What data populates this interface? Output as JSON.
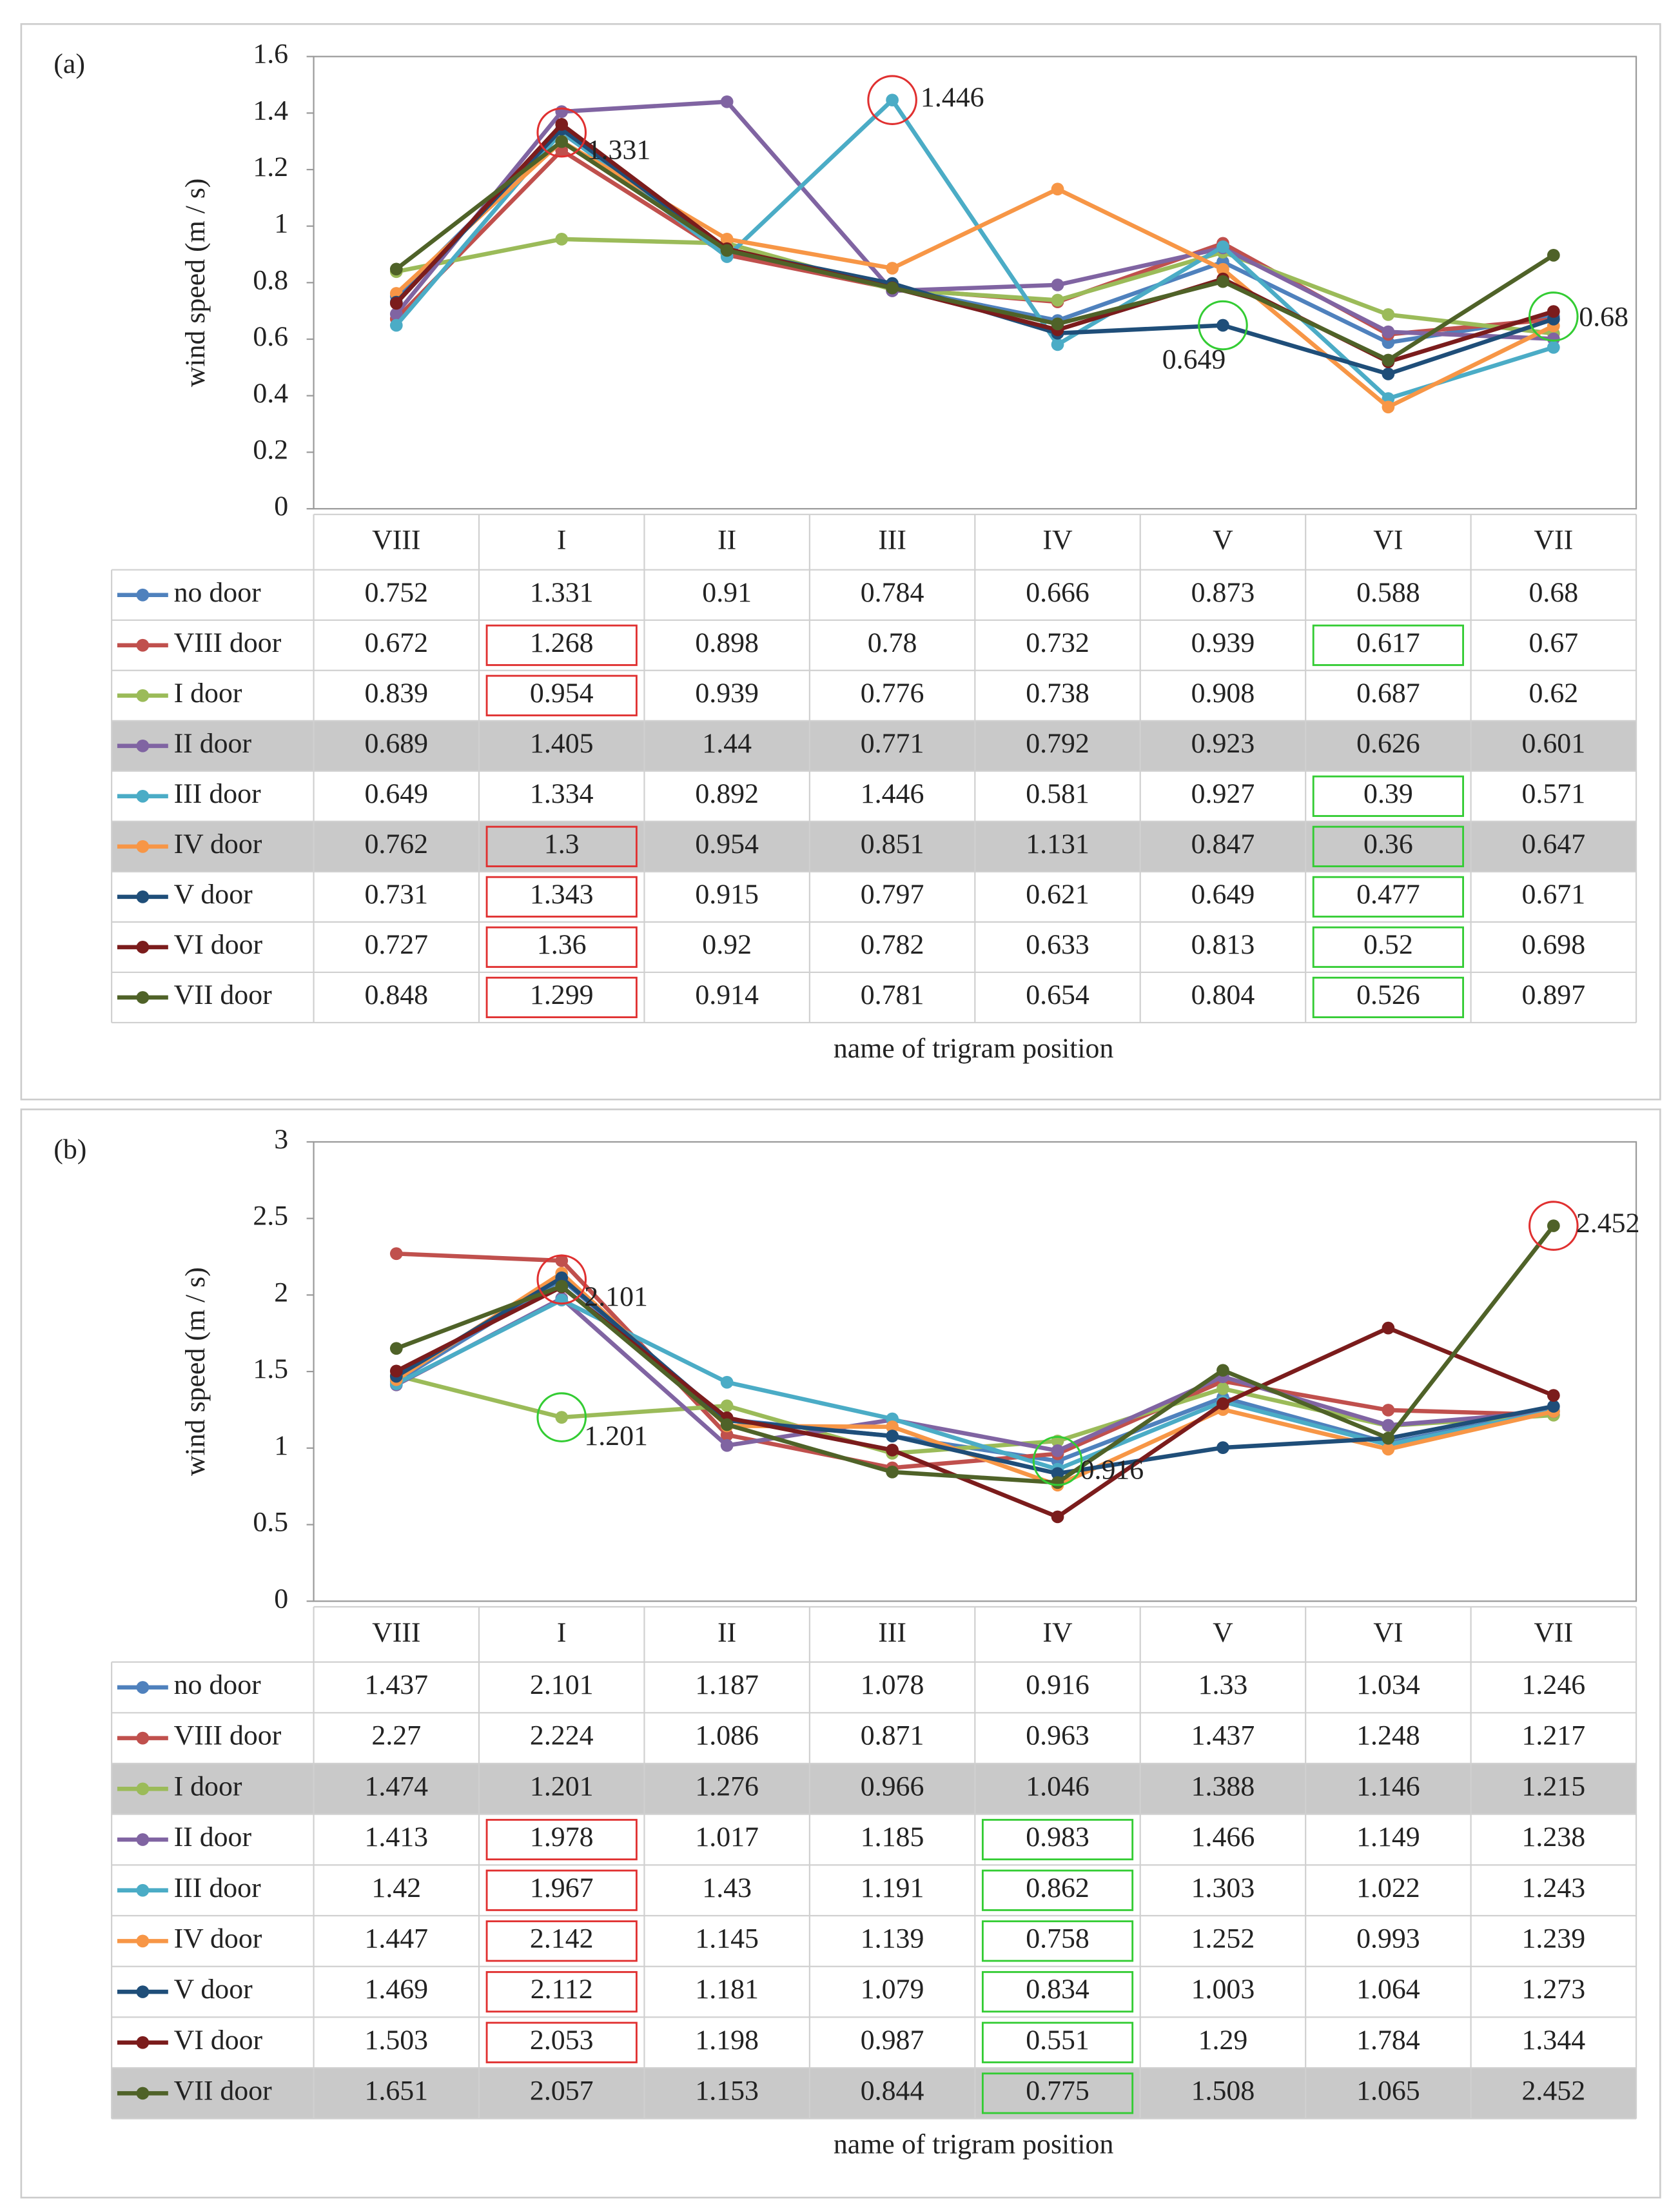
{
  "chart_data": [
    {
      "type": "line",
      "title": "(a)",
      "y_label": "wind speed (m / s)",
      "x_label": "name of trigram position",
      "categories": [
        "VIII",
        "I",
        "II",
        "III",
        "IV",
        "V",
        "VI",
        "VII"
      ],
      "ylim": [
        0,
        1.6
      ],
      "yticks": [
        0,
        0.2,
        0.4,
        0.6,
        0.8,
        1,
        1.2,
        1.4,
        1.6
      ],
      "series": [
        {
          "name": "no door",
          "color": "#4f81bd",
          "values": [
            0.752,
            1.331,
            0.91,
            0.784,
            0.666,
            0.873,
            0.588,
            0.68
          ]
        },
        {
          "name": "VIII door",
          "color": "#c0504d",
          "values": [
            0.672,
            1.268,
            0.898,
            0.78,
            0.732,
            0.939,
            0.617,
            0.67
          ]
        },
        {
          "name": "I door",
          "color": "#9bbb59",
          "values": [
            0.839,
            0.954,
            0.939,
            0.776,
            0.738,
            0.908,
            0.687,
            0.62
          ]
        },
        {
          "name": "II door",
          "color": "#8064a2",
          "values": [
            0.689,
            1.405,
            1.44,
            0.771,
            0.792,
            0.923,
            0.626,
            0.601
          ]
        },
        {
          "name": "III door",
          "color": "#4bacc6",
          "values": [
            0.649,
            1.334,
            0.892,
            1.446,
            0.581,
            0.927,
            0.39,
            0.571
          ]
        },
        {
          "name": "IV door",
          "color": "#f79646",
          "values": [
            0.762,
            1.3,
            0.954,
            0.851,
            1.131,
            0.847,
            0.36,
            0.647
          ]
        },
        {
          "name": "V door",
          "color": "#1f4e79",
          "values": [
            0.731,
            1.343,
            0.915,
            0.797,
            0.621,
            0.649,
            0.477,
            0.671
          ]
        },
        {
          "name": "VI door",
          "color": "#7b1c1c",
          "values": [
            0.727,
            1.36,
            0.92,
            0.782,
            0.633,
            0.813,
            0.52,
            0.698
          ]
        },
        {
          "name": "VII door",
          "color": "#4f6228",
          "values": [
            0.848,
            1.299,
            0.914,
            0.781,
            0.654,
            0.804,
            0.526,
            0.897
          ]
        }
      ],
      "annotations": [
        {
          "x": "I",
          "y": 1.331,
          "color": "#e03030"
        },
        {
          "x": "III",
          "y": 1.446,
          "color": "#e03030"
        },
        {
          "x": "V",
          "y": 0.649,
          "color": "#33cc33"
        },
        {
          "x": "VII",
          "y": 0.68,
          "color": "#33cc33"
        }
      ],
      "shaded_series": [
        "II door",
        "IV door"
      ],
      "boxed_cells": [
        {
          "category": "I",
          "color": "#e03030",
          "series": [
            "VIII door",
            "I door",
            "IV door",
            "V door",
            "VI door",
            "VII door"
          ]
        },
        {
          "category": "VI",
          "color": "#33cc33",
          "series": [
            "VIII door",
            "III door",
            "IV door",
            "V door",
            "VI door",
            "VII door"
          ]
        }
      ]
    },
    {
      "type": "line",
      "title": "(b)",
      "y_label": "wind speed (m / s)",
      "x_label": "name of trigram position",
      "categories": [
        "VIII",
        "I",
        "II",
        "III",
        "IV",
        "V",
        "VI",
        "VII"
      ],
      "ylim": [
        0,
        3
      ],
      "yticks": [
        0,
        0.5,
        1,
        1.5,
        2,
        2.5,
        3
      ],
      "series": [
        {
          "name": "no door",
          "color": "#4f81bd",
          "values": [
            1.437,
            2.101,
            1.187,
            1.078,
            0.916,
            1.33,
            1.034,
            1.246
          ]
        },
        {
          "name": "VIII door",
          "color": "#c0504d",
          "values": [
            2.27,
            2.224,
            1.086,
            0.871,
            0.963,
            1.437,
            1.248,
            1.217
          ]
        },
        {
          "name": "I door",
          "color": "#9bbb59",
          "values": [
            1.474,
            1.201,
            1.276,
            0.966,
            1.046,
            1.388,
            1.146,
            1.215
          ]
        },
        {
          "name": "II door",
          "color": "#8064a2",
          "values": [
            1.413,
            1.978,
            1.017,
            1.185,
            0.983,
            1.466,
            1.149,
            1.238
          ]
        },
        {
          "name": "III door",
          "color": "#4bacc6",
          "values": [
            1.42,
            1.967,
            1.43,
            1.191,
            0.862,
            1.303,
            1.022,
            1.243
          ]
        },
        {
          "name": "IV door",
          "color": "#f79646",
          "values": [
            1.447,
            2.142,
            1.145,
            1.139,
            0.758,
            1.252,
            0.993,
            1.239
          ]
        },
        {
          "name": "V door",
          "color": "#1f4e79",
          "values": [
            1.469,
            2.112,
            1.181,
            1.079,
            0.834,
            1.003,
            1.064,
            1.273
          ]
        },
        {
          "name": "VI door",
          "color": "#7b1c1c",
          "values": [
            1.503,
            2.053,
            1.198,
            0.987,
            0.551,
            1.29,
            1.784,
            1.344
          ]
        },
        {
          "name": "VII door",
          "color": "#4f6228",
          "values": [
            1.651,
            2.057,
            1.153,
            0.844,
            0.775,
            1.508,
            1.065,
            2.452
          ]
        }
      ],
      "annotations": [
        {
          "x": "I",
          "y": 2.101,
          "color": "#e03030"
        },
        {
          "x": "VII",
          "y": 2.452,
          "color": "#e03030"
        },
        {
          "x": "I",
          "y": 1.201,
          "color": "#33cc33"
        },
        {
          "x": "IV",
          "y": 0.916,
          "color": "#33cc33"
        }
      ],
      "shaded_series": [
        "I door",
        "VII door"
      ],
      "boxed_cells": [
        {
          "category": "I",
          "color": "#e03030",
          "series": [
            "II door",
            "III door",
            "IV door",
            "V door",
            "VI door"
          ]
        },
        {
          "category": "IV",
          "color": "#33cc33",
          "series": [
            "II door",
            "III door",
            "IV door",
            "V door",
            "VI door",
            "VII door"
          ]
        }
      ]
    }
  ]
}
